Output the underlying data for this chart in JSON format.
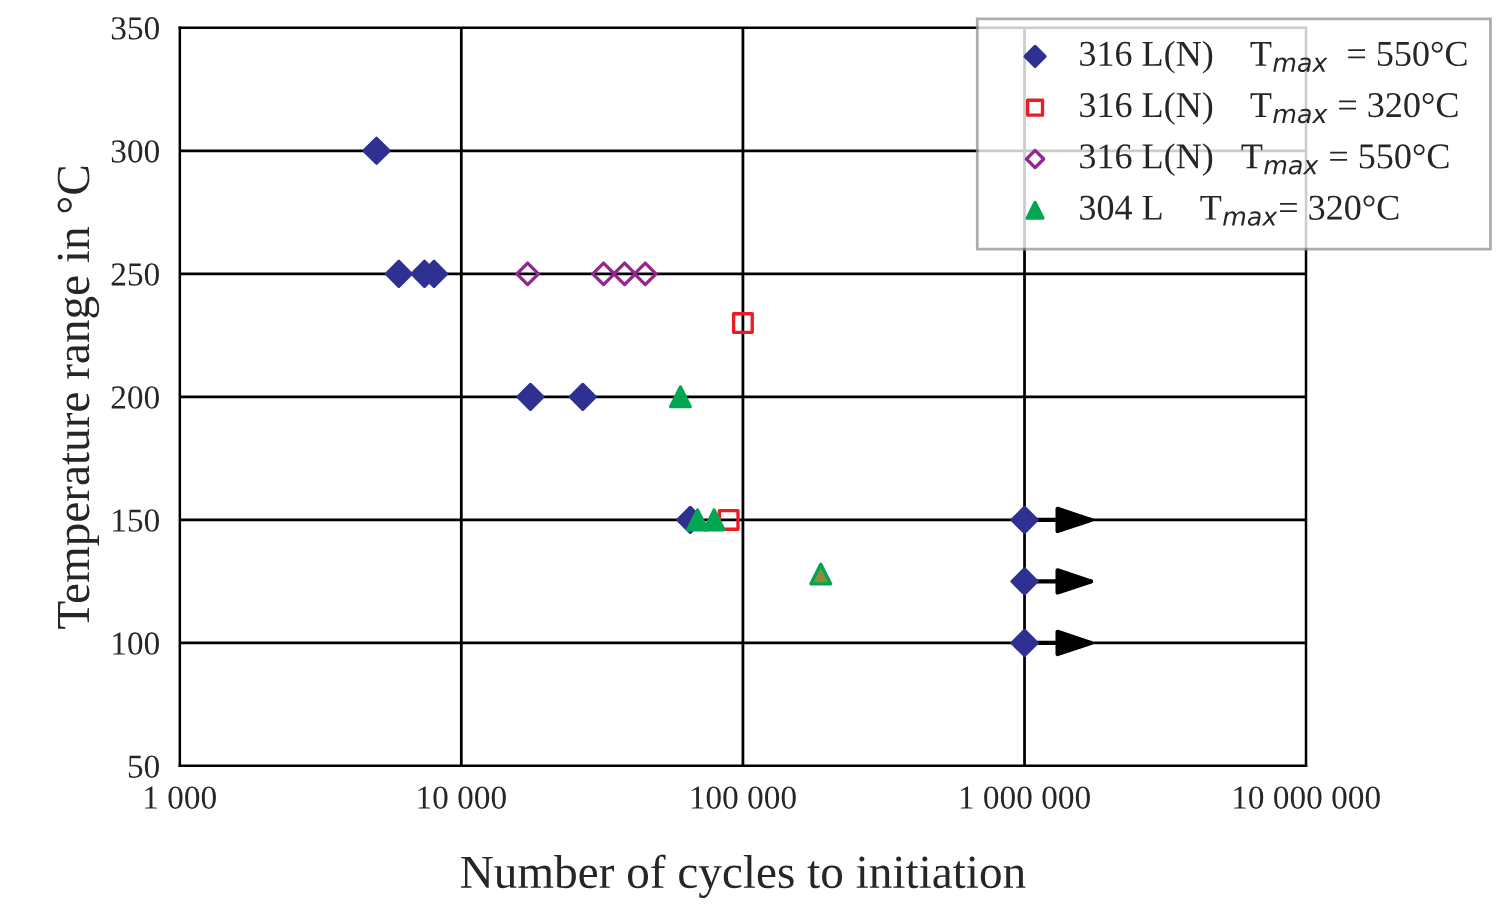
{
  "chart_data": {
    "type": "scatter",
    "xlabel": "Number of cycles to initiation",
    "ylabel": "Temperature range in °C",
    "log": "x",
    "grid": true,
    "legend": "top right",
    "xlim": [
      1000,
      10000000
    ],
    "xticks": [
      {
        "value": 1000,
        "label": "1 000"
      },
      {
        "value": 10000,
        "label": "10 000"
      },
      {
        "value": 100000,
        "label": "100 000"
      },
      {
        "value": 1000000,
        "label": "1 000 000"
      },
      {
        "value": 10000000,
        "label": "10 000 000"
      }
    ],
    "ylim": [
      50,
      350
    ],
    "yticks": [
      50,
      100,
      150,
      200,
      250,
      300,
      350
    ],
    "series": [
      {
        "name": "316 L(N)    T$_{max}$  = 550°C",
        "color": "#2e3192",
        "marker": "diamond",
        "x": [
          5000,
          6000,
          7400,
          8000,
          17600,
          27000,
          65000,
          1000000,
          1000000,
          1000000
        ],
        "values": [
          300,
          250,
          250,
          250,
          200,
          200,
          150,
          150,
          125,
          100
        ]
      },
      {
        "name": "316 L(N)    T$_{max}$ = 320°C",
        "color": "#ed1c24",
        "marker": "square",
        "x": [
          100000,
          89000
        ],
        "values": [
          230,
          150
        ]
      },
      {
        "name": "316 L(N)   T$_{max}$ = 550°C",
        "color": "#92278f",
        "marker": "diamond",
        "x": [
          17200,
          32000,
          38000,
          45000
        ],
        "values": [
          250,
          250,
          250,
          250
        ]
      },
      {
        "name": "304 L    T$_{max}$= 320°C",
        "color": "#00a651",
        "marker": "triangle",
        "x": [
          60000,
          69000,
          79000,
          189000
        ],
        "values": [
          200,
          150,
          150,
          128
        ],
        "colors": [
          "#00a651",
          "#00a651",
          "#00a651",
          "#8c8c3c"
        ]
      }
    ]
  }
}
